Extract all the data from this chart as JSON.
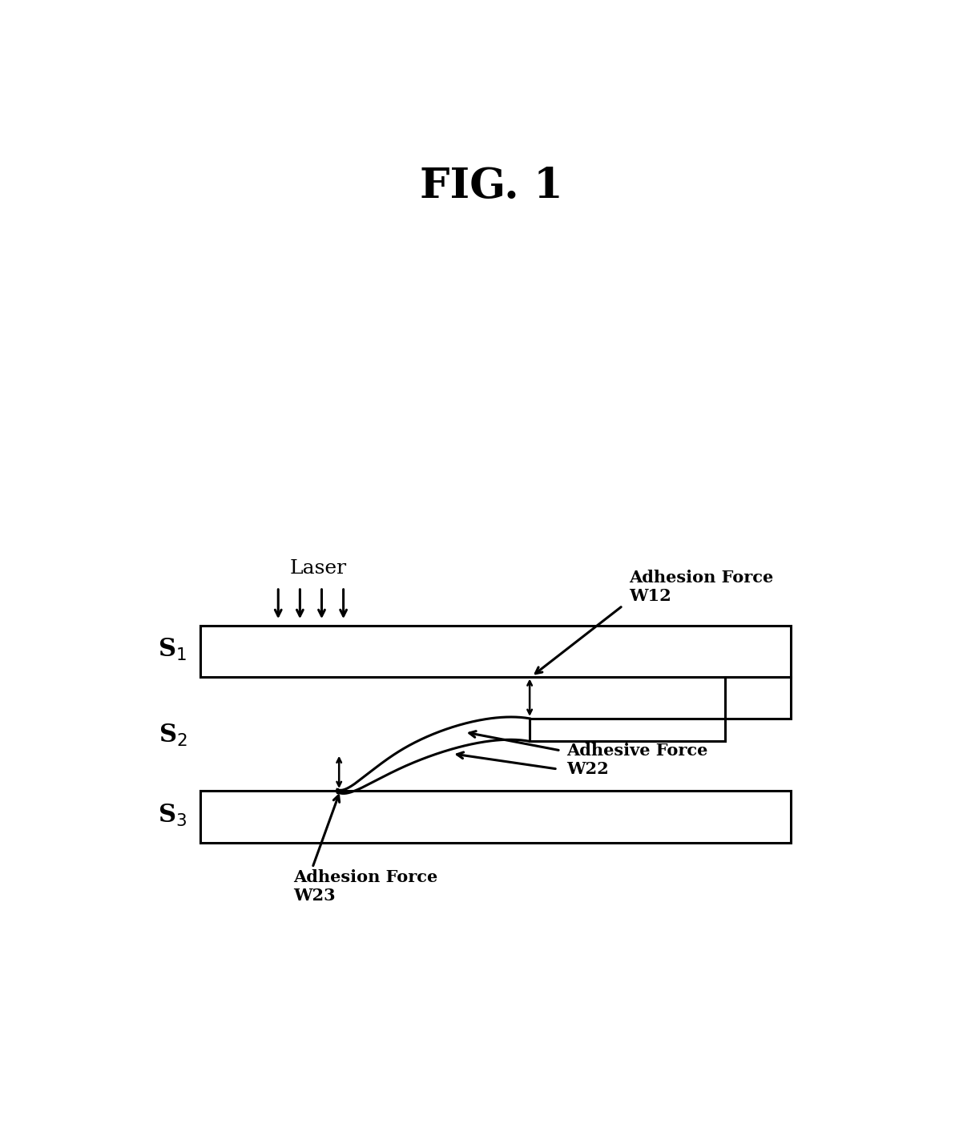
{
  "title": "FIG. 1",
  "title_fontsize": 38,
  "title_fontweight": "bold",
  "background_color": "#ffffff",
  "text_color": "#000000",
  "line_color": "#000000",
  "line_width": 2.2,
  "fig_width": 11.97,
  "fig_height": 14.23,
  "s1_label": "S$_1$",
  "s2_label": "S$_2$",
  "s3_label": "S$_3$",
  "laser_label": "Laser",
  "adhesion_w12_label": "Adhesion Force\nW12",
  "adhesive_w22_label": "Adhesive Force\nW22",
  "adhesion_w23_label": "Adhesion Force\nW23",
  "label_fontsize": 18,
  "annot_fontsize": 15,
  "s_label_fontsize": 22
}
